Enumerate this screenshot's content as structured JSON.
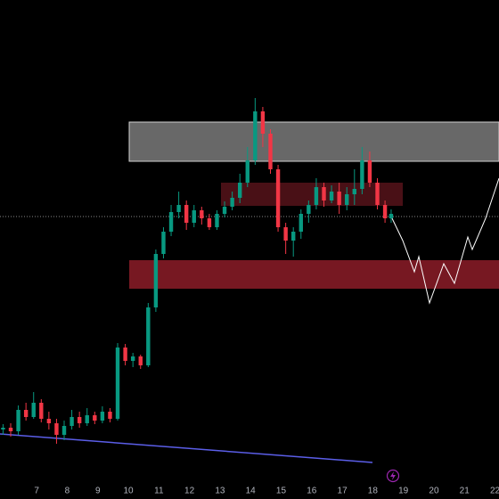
{
  "chart_data": {
    "type": "candlestick",
    "x": [
      5.9,
      6.15,
      6.4,
      6.65,
      6.9,
      7.15,
      7.4,
      7.65,
      7.9,
      8.15,
      8.4,
      8.65,
      8.9,
      9.15,
      9.4,
      9.65,
      9.9,
      10.15,
      10.4,
      10.65,
      10.9,
      11.15,
      11.4,
      11.65,
      11.9,
      12.15,
      12.4,
      12.65,
      12.9,
      13.15,
      13.4,
      13.65,
      13.9,
      14.15,
      14.4,
      14.65,
      14.9,
      15.15,
      15.4,
      15.65,
      15.9,
      16.15,
      16.4,
      16.65,
      16.9,
      17.15,
      17.4,
      17.65,
      17.9,
      18.15,
      18.4,
      18.6
    ],
    "open": [
      78,
      80,
      76,
      100,
      92,
      108,
      90,
      85,
      72,
      82,
      92,
      85,
      94,
      88,
      98,
      90,
      170,
      155,
      160,
      150,
      215,
      275,
      300,
      322,
      330,
      310,
      324,
      315,
      305,
      320,
      328,
      338,
      355,
      380,
      435,
      410,
      370,
      305,
      290,
      300,
      320,
      330,
      350,
      335,
      345,
      330,
      342,
      348,
      380,
      355,
      330,
      315
    ],
    "high": [
      84,
      85,
      105,
      108,
      120,
      112,
      98,
      90,
      88,
      100,
      98,
      102,
      98,
      104,
      102,
      175,
      174,
      164,
      162,
      220,
      280,
      305,
      330,
      345,
      335,
      330,
      328,
      320,
      324,
      334,
      345,
      365,
      395,
      450,
      440,
      415,
      375,
      310,
      305,
      325,
      335,
      360,
      355,
      352,
      355,
      350,
      370,
      395,
      390,
      360,
      335,
      325
    ],
    "low": [
      72,
      70,
      72,
      88,
      90,
      86,
      78,
      62,
      66,
      78,
      80,
      82,
      84,
      85,
      86,
      88,
      150,
      148,
      146,
      148,
      210,
      270,
      295,
      315,
      302,
      305,
      308,
      302,
      302,
      316,
      324,
      332,
      350,
      375,
      395,
      365,
      300,
      275,
      272,
      292,
      310,
      325,
      328,
      332,
      320,
      324,
      330,
      342,
      350,
      325,
      310,
      310
    ],
    "close": [
      80,
      76,
      100,
      92,
      108,
      90,
      85,
      72,
      82,
      92,
      85,
      94,
      88,
      98,
      90,
      170,
      155,
      160,
      150,
      215,
      275,
      300,
      322,
      330,
      310,
      324,
      315,
      305,
      320,
      328,
      338,
      355,
      380,
      435,
      410,
      370,
      305,
      290,
      300,
      320,
      330,
      350,
      335,
      345,
      330,
      342,
      348,
      380,
      355,
      330,
      315,
      320
    ],
    "up_color": "#089981",
    "down_color": "#f23645",
    "xlim": [
      5.8,
      22.13
    ],
    "xticks": [
      7,
      8,
      9,
      10,
      11,
      12,
      13,
      14,
      15,
      16,
      17,
      18,
      19,
      20,
      21,
      22
    ],
    "ylim": [
      0,
      560
    ]
  }
}
